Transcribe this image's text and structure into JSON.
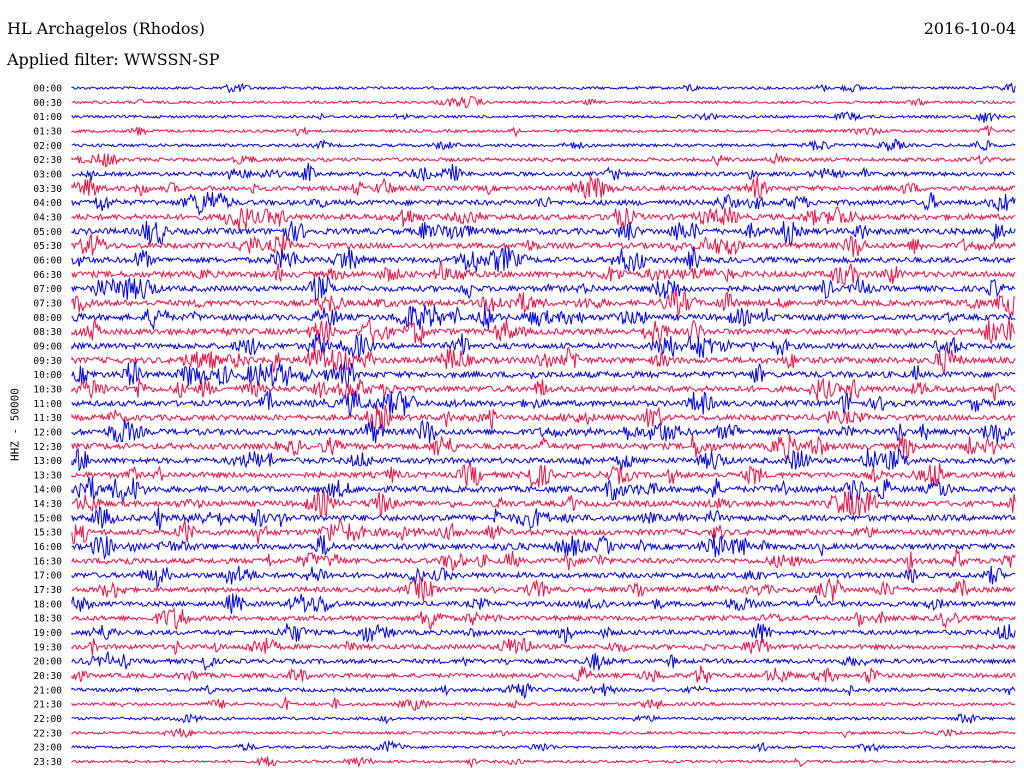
{
  "header": {
    "station": "HL Archagelos (Rhodos)",
    "date": "2016-10-04",
    "filter": "Applied filter: WWSSN-SP"
  },
  "chart_data": {
    "type": "line",
    "subtype": "helicorder",
    "title": "HL Archagelos (Rhodos)",
    "ylabel": "HHZ - 50000",
    "colors": [
      "#0000ee",
      "#ee1144"
    ],
    "rows": [
      "00:00",
      "00:30",
      "01:00",
      "01:30",
      "02:00",
      "02:30",
      "03:00",
      "03:30",
      "04:00",
      "04:30",
      "05:00",
      "05:30",
      "06:00",
      "06:30",
      "07:00",
      "07:30",
      "08:00",
      "08:30",
      "09:00",
      "09:30",
      "10:00",
      "10:30",
      "11:00",
      "11:30",
      "12:00",
      "12:30",
      "13:00",
      "13:30",
      "14:00",
      "14:30",
      "15:00",
      "15:30",
      "16:00",
      "16:30",
      "17:00",
      "17:30",
      "18:00",
      "18:30",
      "19:00",
      "19:30",
      "20:00",
      "20:30",
      "21:00",
      "21:30",
      "22:00",
      "22:30",
      "23:00",
      "23:30"
    ],
    "activity": [
      0.8,
      0.8,
      0.8,
      0.9,
      1.0,
      1.3,
      1.6,
      1.9,
      2.2,
      2.4,
      2.6,
      2.4,
      2.4,
      2.6,
      2.4,
      2.4,
      2.6,
      2.6,
      2.4,
      2.6,
      2.6,
      2.6,
      2.4,
      2.4,
      2.6,
      2.6,
      2.4,
      2.4,
      2.6,
      2.4,
      2.6,
      2.4,
      2.4,
      2.2,
      2.2,
      2.0,
      2.0,
      2.0,
      1.9,
      1.9,
      1.8,
      1.7,
      1.4,
      1.1,
      0.9,
      0.8,
      0.8,
      0.8
    ]
  }
}
